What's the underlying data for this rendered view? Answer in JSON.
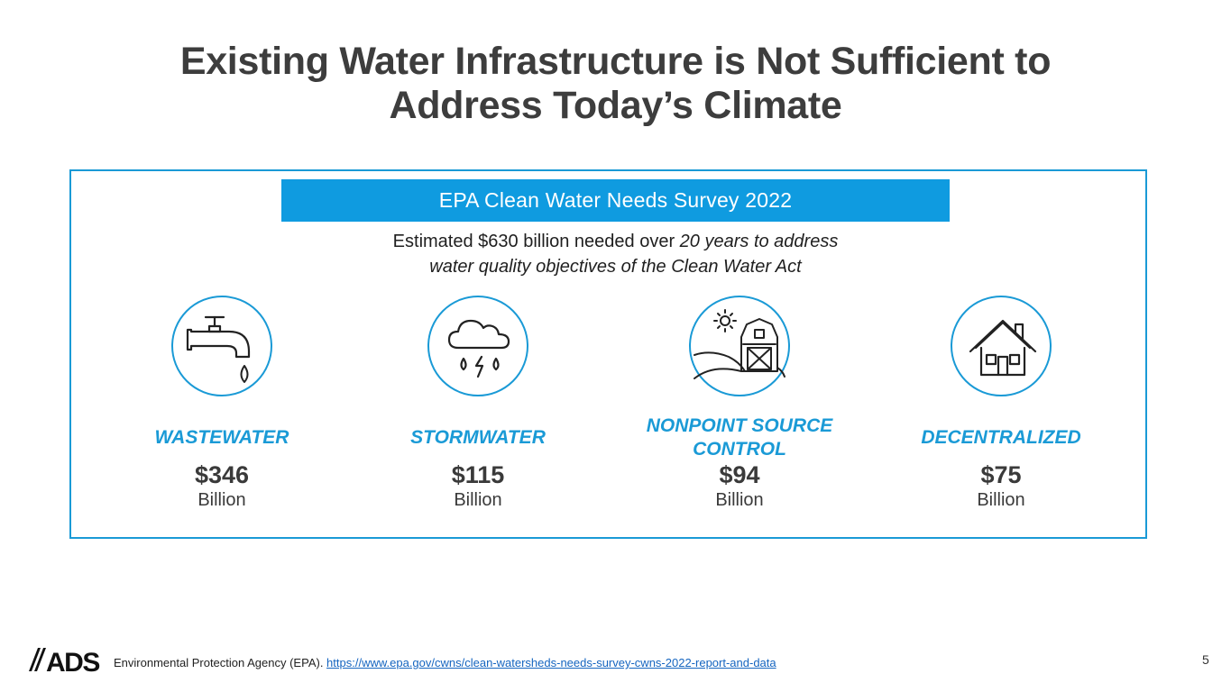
{
  "title": {
    "line1": "Existing Water Infrastructure is Not Sufficient to",
    "line2": "Address Today’s Climate"
  },
  "banner": {
    "text": "EPA Clean Water Needs Survey 2022"
  },
  "subtitle": {
    "line1_plain": "Estimated $630 billion needed over ",
    "line1_italic": "20 years to address",
    "line2_italic": "water quality objectives of the Clean Water Act"
  },
  "categories": [
    {
      "label": "WASTEWATER",
      "amount": "$346",
      "unit": "Billion",
      "icon": "faucet-icon"
    },
    {
      "label": "STORMWATER",
      "amount": "$115",
      "unit": "Billion",
      "icon": "storm-cloud-icon"
    },
    {
      "label": "NONPOINT SOURCE CONTROL",
      "amount": "$94",
      "unit": "Billion",
      "icon": "barn-icon"
    },
    {
      "label": "DECENTRALIZED",
      "amount": "$75",
      "unit": "Billion",
      "icon": "house-icon"
    }
  ],
  "footer": {
    "logo_text": "ADS",
    "source_text": "Environmental Protection Agency (EPA). ",
    "source_link": "https://www.epa.gov/cwns/clean-watersheds-needs-survey-cwns-2022-report-and-data"
  },
  "page_number": "5",
  "colors": {
    "accent": "#1a9ad6",
    "banner": "#0f9be0",
    "title": "#3d3d3d"
  }
}
